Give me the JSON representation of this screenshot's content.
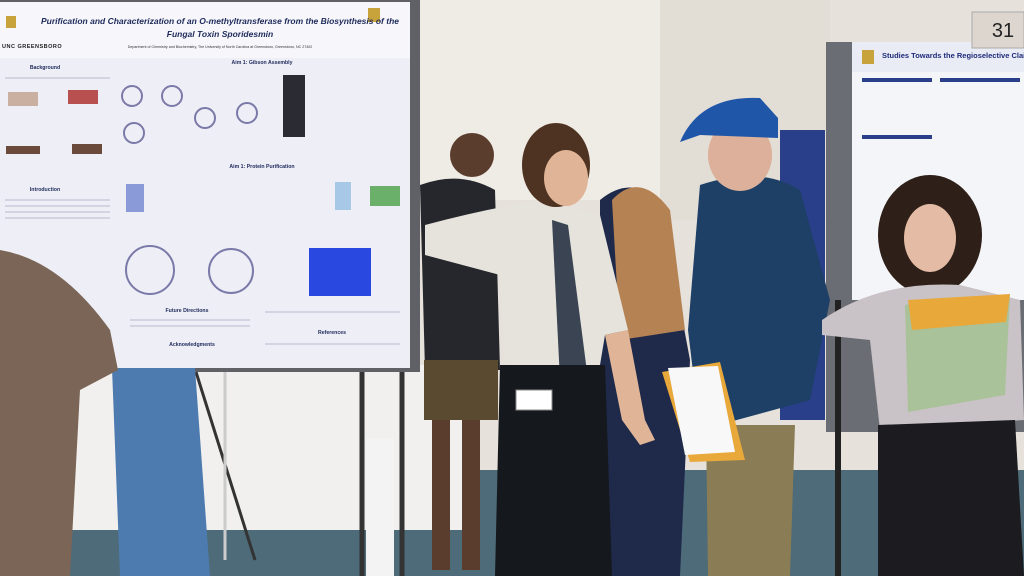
{
  "left_poster": {
    "title_lines": [
      "Purification and Characterization of an O-methyltransferase from the Biosynthesis of the",
      "Fungal Toxin Sporidesmin"
    ],
    "affiliation": "Department of Chemistry and Biochemistry, The University of North Carolina at Greensboro, Greensboro, NC 27402",
    "institution": "UNC GREENSBORO",
    "sections": [
      "Background",
      "Aim 1: Gibson Assembly",
      "Aim 1: Protein Purification",
      "Introduction",
      "Future Directions",
      "Acknowledgments",
      "References"
    ]
  },
  "right_poster": {
    "title": "Studies Towards the Regioselective Claisen Rearrange"
  },
  "booth_number": "31"
}
